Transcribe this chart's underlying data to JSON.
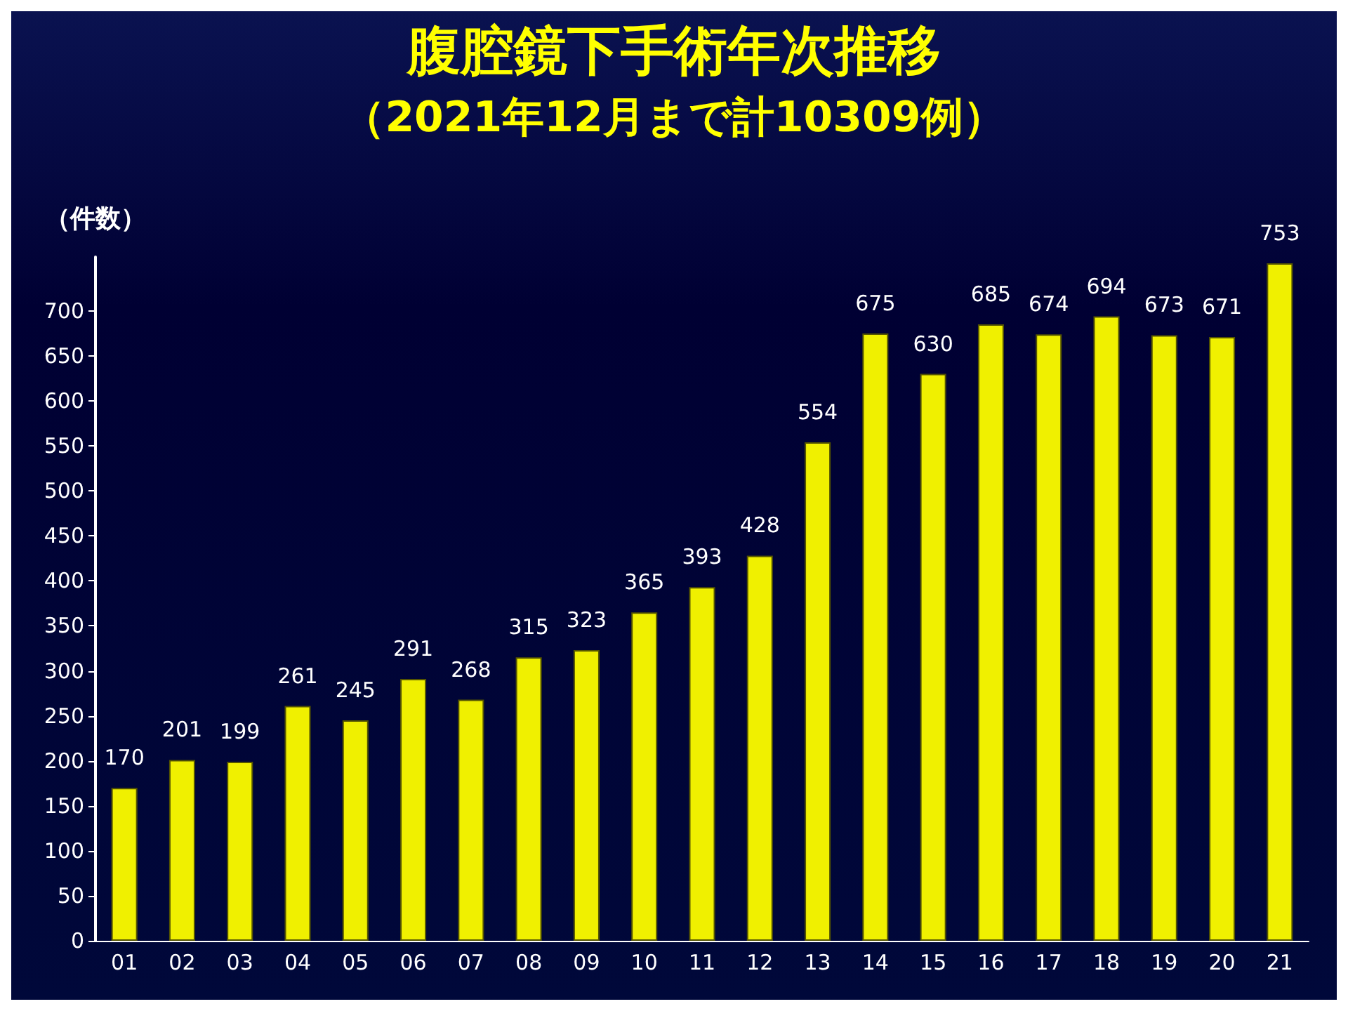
{
  "chart_data": {
    "type": "bar",
    "title": "腹腔鏡下手術年次推移",
    "subtitle": "（2021年12月まで計10309例）",
    "ylabel": "（件数）",
    "categories": [
      "01",
      "02",
      "03",
      "04",
      "05",
      "06",
      "07",
      "08",
      "09",
      "10",
      "11",
      "12",
      "13",
      "14",
      "15",
      "16",
      "17",
      "18",
      "19",
      "20",
      "21"
    ],
    "values": [
      170,
      201,
      199,
      261,
      245,
      291,
      268,
      315,
      323,
      365,
      393,
      428,
      554,
      675,
      630,
      685,
      674,
      694,
      673,
      671,
      753
    ],
    "color": "#f0f000",
    "ylim": [
      0,
      760
    ],
    "yticks": [
      0,
      50,
      100,
      150,
      200,
      250,
      300,
      350,
      400,
      450,
      500,
      550,
      600,
      650,
      700
    ],
    "grid": false,
    "data_labels": true
  }
}
